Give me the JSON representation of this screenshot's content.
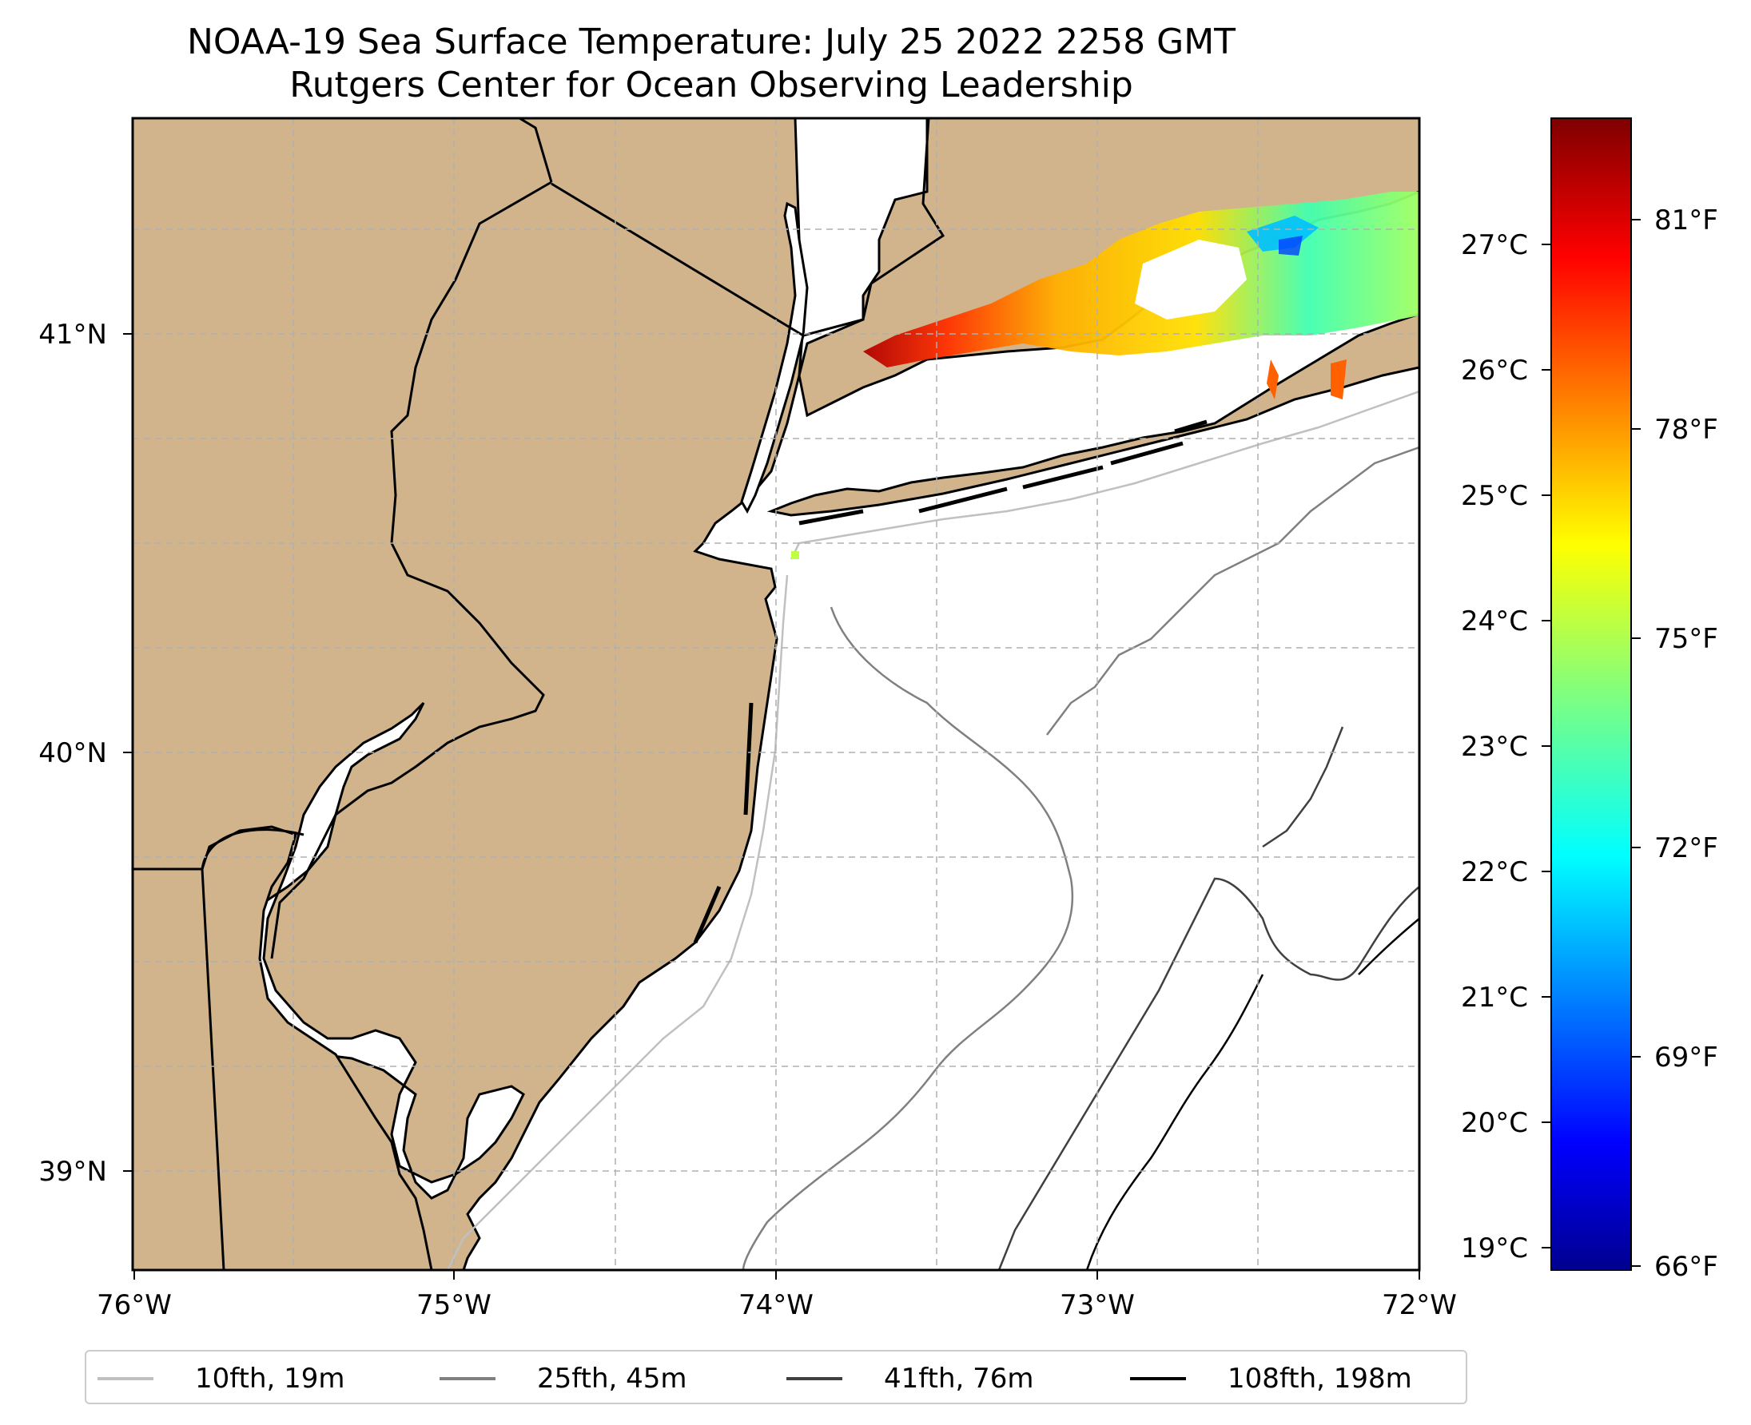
{
  "title": {
    "line1": "NOAA-19 Sea Surface Temperature: July 25 2022 2258 GMT",
    "line2": "Rutgers Center for Ocean Observing Leadership"
  },
  "map": {
    "x_ticks": [
      "76°W",
      "75°W",
      "74°W",
      "73°W",
      "72°W"
    ],
    "y_ticks": [
      "41°N",
      "40°N",
      "39°N"
    ],
    "land_color": "#d2b48c",
    "water_color": "#ffffff",
    "grid": true
  },
  "colorbar": {
    "colormap": "jet",
    "celsius_ticks": [
      "27°C",
      "26°C",
      "25°C",
      "24°C",
      "23°C",
      "22°C",
      "21°C",
      "20°C",
      "19°C"
    ],
    "fahrenheit_ticks": [
      "81°F",
      "78°F",
      "75°F",
      "72°F",
      "69°F",
      "66°F"
    ]
  },
  "legend": {
    "items": [
      {
        "label": "10fth, 19m",
        "color": "#c0c0c0"
      },
      {
        "label": "25fth, 45m",
        "color": "#808080"
      },
      {
        "label": "41fth, 76m",
        "color": "#404040"
      },
      {
        "label": "108fth, 198m",
        "color": "#000000"
      }
    ]
  }
}
